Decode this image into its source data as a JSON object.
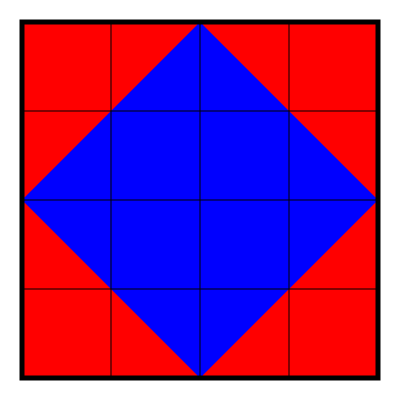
{
  "figure": {
    "grid": {
      "rows": 4,
      "cols": 4
    },
    "colors": {
      "background": "#ff0000",
      "diamond": "#0000ff",
      "grid_lines": "#000000",
      "border": "#000000"
    },
    "shapes": [
      "square",
      "diamond"
    ]
  }
}
